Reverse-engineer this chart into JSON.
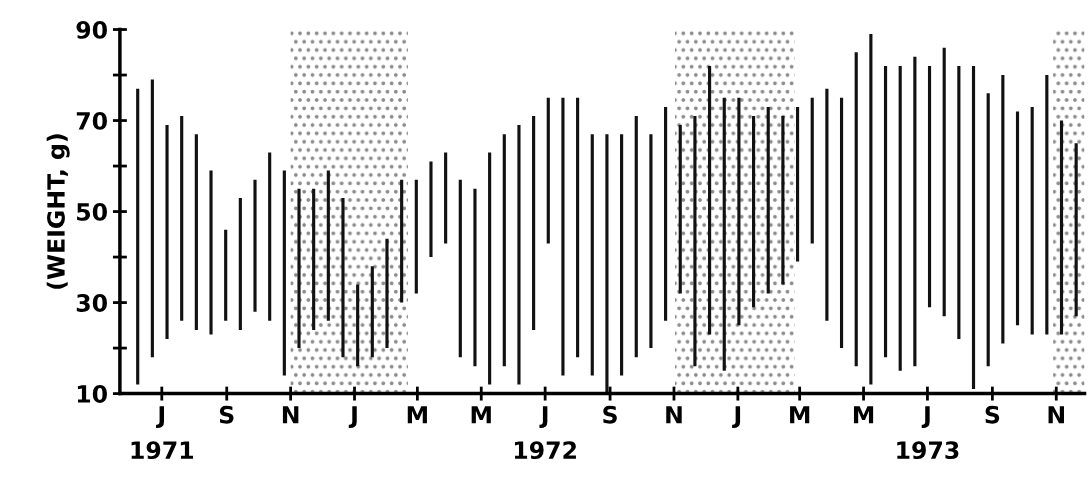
{
  "chart_data": {
    "type": "bar",
    "ylabel": "(WEIGHT, g)",
    "color": "#111111",
    "x": [
      "1971-06-22",
      "1971-07-06",
      "1971-07-20",
      "1971-08-03",
      "1971-08-17",
      "1971-08-31",
      "1971-09-14",
      "1971-09-28",
      "1971-10-12",
      "1971-10-26",
      "1971-11-09",
      "1971-11-23",
      "1971-12-07",
      "1971-12-21",
      "1972-01-04",
      "1972-01-18",
      "1972-02-01",
      "1972-02-15",
      "1972-02-29",
      "1972-03-14",
      "1972-03-28",
      "1972-04-11",
      "1972-04-25",
      "1972-05-09",
      "1972-05-23",
      "1972-06-06",
      "1972-06-20",
      "1972-07-04",
      "1972-07-18",
      "1972-08-01",
      "1972-08-15",
      "1972-08-29",
      "1972-09-12",
      "1972-09-26",
      "1972-10-10",
      "1972-10-24",
      "1972-11-07",
      "1972-11-21",
      "1972-12-05",
      "1972-12-19",
      "1973-01-02",
      "1973-01-16",
      "1973-01-30",
      "1973-02-13",
      "1973-02-27",
      "1973-03-13",
      "1973-03-27",
      "1973-04-10",
      "1973-04-24",
      "1973-05-08",
      "1973-05-22",
      "1973-06-05",
      "1973-06-19",
      "1973-07-03",
      "1973-07-17",
      "1973-07-31",
      "1973-08-14",
      "1973-08-28",
      "1973-09-11",
      "1973-09-25",
      "1973-10-09",
      "1973-10-23",
      "1973-11-06",
      "1973-11-20",
      "1973-12-04"
    ],
    "base": [
      12,
      18,
      22,
      26,
      24,
      23,
      26,
      24,
      28,
      26,
      14,
      20,
      24,
      26,
      18,
      16,
      18,
      20,
      30,
      32,
      40,
      43,
      18,
      16,
      12,
      16,
      12,
      24,
      43,
      14,
      18,
      14,
      10,
      14,
      18,
      20,
      26,
      32,
      16,
      23,
      15,
      25,
      29,
      32,
      34,
      39,
      43,
      26,
      20,
      16,
      12,
      18,
      15,
      16,
      29,
      27,
      22,
      11,
      16,
      21,
      25,
      23,
      23,
      23,
      27
    ],
    "values": [
      65,
      61,
      47,
      45,
      43,
      36,
      20,
      29,
      29,
      37,
      45,
      35,
      31,
      33,
      35,
      18,
      20,
      24,
      27,
      25,
      21,
      20,
      39,
      39,
      51,
      51,
      57,
      47,
      32,
      61,
      57,
      53,
      57,
      53,
      53,
      47,
      47,
      37,
      55,
      59,
      60,
      50,
      42,
      41,
      37,
      34,
      32,
      51,
      55,
      69,
      77,
      64,
      67,
      68,
      53,
      59,
      60,
      71,
      60,
      59,
      47,
      50,
      57,
      47,
      38
    ],
    "ylim": [
      10,
      90
    ],
    "yticks": [
      10,
      {
        "value": 20,
        "label": null
      },
      30,
      {
        "value": 40,
        "label": null
      },
      50,
      {
        "value": 60,
        "label": null
      },
      70,
      {
        "value": 80,
        "label": null
      },
      90
    ],
    "xlim": [
      "1971-06-05",
      "1973-12-12"
    ],
    "xticks": [
      {
        "value": "1971-07-15",
        "label": "J\n1971"
      },
      {
        "value": "1971-09-15",
        "label": "S"
      },
      {
        "value": "1971-11-15",
        "label": "N"
      },
      {
        "value": "1972-01-15",
        "label": "J"
      },
      {
        "value": "1972-03-15",
        "label": "M"
      },
      {
        "value": "1972-05-15",
        "label": "M"
      },
      {
        "value": "1972-07-15",
        "label": "J\n1972"
      },
      {
        "value": "1972-09-15",
        "label": "S"
      },
      {
        "value": "1972-11-15",
        "label": "N"
      },
      {
        "value": "1973-01-15",
        "label": "J"
      },
      {
        "value": "1973-03-15",
        "label": "M"
      },
      {
        "value": "1973-05-15",
        "label": "M"
      },
      {
        "value": "1973-07-15",
        "label": "J\n1973"
      },
      {
        "value": "1973-09-15",
        "label": "S"
      },
      {
        "value": "1973-11-15",
        "label": "N"
      }
    ],
    "bands": [
      {
        "axis": "x",
        "from": "1971-11-15",
        "to": "1972-03-06",
        "color": "#8a8a8a"
      },
      {
        "axis": "x",
        "from": "1972-11-16",
        "to": "1973-03-10",
        "color": "#8a8a8a"
      },
      {
        "axis": "x",
        "from": "1973-11-12",
        "to": "1973-12-12",
        "color": "#8a8a8a"
      }
    ]
  }
}
